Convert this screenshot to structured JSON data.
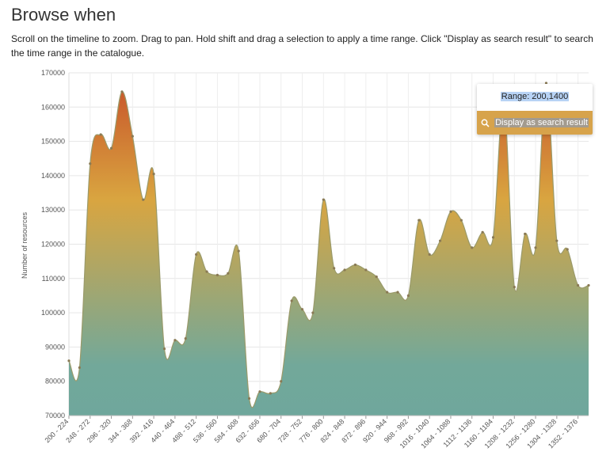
{
  "page": {
    "title": "Browse when",
    "description": "Scroll on the timeline to zoom. Drag to pan. Hold shift and drag a selection to apply a time range. Click \"Display as search result\" to search the time range in the catalogue."
  },
  "popup": {
    "range_text": "Range: 200,1400",
    "search_label": "Display as search result"
  },
  "colors": {
    "gradient_top": "#c8552a",
    "gradient_mid": "#d9a540",
    "gradient_bottom": "#72a89a",
    "button": "#d7a34b"
  },
  "chart_data": {
    "type": "area",
    "ylabel": "Number of resources",
    "ylim": [
      70000,
      170000
    ],
    "yticks": [
      70000,
      80000,
      90000,
      100000,
      110000,
      120000,
      130000,
      140000,
      150000,
      160000,
      170000
    ],
    "xtick_labels": [
      "200 - 224",
      "248 - 272",
      "296 - 320",
      "344 - 368",
      "392 - 416",
      "440 - 464",
      "488 - 512",
      "536 - 560",
      "584 - 608",
      "632 - 656",
      "680 - 704",
      "728 - 752",
      "776 - 800",
      "824 - 848",
      "872 - 896",
      "920 - 944",
      "968 - 992",
      "1016 - 1040",
      "1064 - 1088",
      "1112 - 1136",
      "1160 - 1184",
      "1208 - 1232",
      "1256 - 1280",
      "1304 - 1328",
      "1352 - 1376"
    ],
    "categories": [
      "200 - 224",
      "224 - 248",
      "248 - 272",
      "272 - 296",
      "296 - 320",
      "320 - 344",
      "344 - 368",
      "368 - 392",
      "392 - 416",
      "416 - 440",
      "440 - 464",
      "464 - 488",
      "488 - 512",
      "512 - 536",
      "536 - 560",
      "560 - 584",
      "584 - 608",
      "608 - 632",
      "632 - 656",
      "656 - 680",
      "680 - 704",
      "704 - 728",
      "728 - 752",
      "752 - 776",
      "776 - 800",
      "800 - 824",
      "824 - 848",
      "848 - 872",
      "872 - 896",
      "896 - 920",
      "920 - 944",
      "944 - 968",
      "968 - 992",
      "992 - 1016",
      "1016 - 1040",
      "1040 - 1064",
      "1064 - 1088",
      "1088 - 1112",
      "1112 - 1136",
      "1136 - 1160",
      "1160 - 1184",
      "1184 - 1208",
      "1208 - 1232",
      "1232 - 1256",
      "1256 - 1280",
      "1280 - 1304",
      "1304 - 1328",
      "1328 - 1352",
      "1352 - 1376",
      "1376 - 1400"
    ],
    "values": [
      86000,
      84000,
      143500,
      152000,
      148000,
      164500,
      151500,
      133000,
      140500,
      89500,
      92000,
      92500,
      117000,
      112000,
      111000,
      111500,
      118000,
      75000,
      77000,
      76500,
      80000,
      103500,
      101000,
      100000,
      133000,
      113000,
      112500,
      114000,
      112500,
      110500,
      106000,
      106000,
      105000,
      127000,
      117000,
      121000,
      129500,
      127000,
      119000,
      123500,
      122000,
      162000,
      107500,
      123000,
      119000,
      167000,
      121000,
      118500,
      108000,
      108000
    ]
  }
}
